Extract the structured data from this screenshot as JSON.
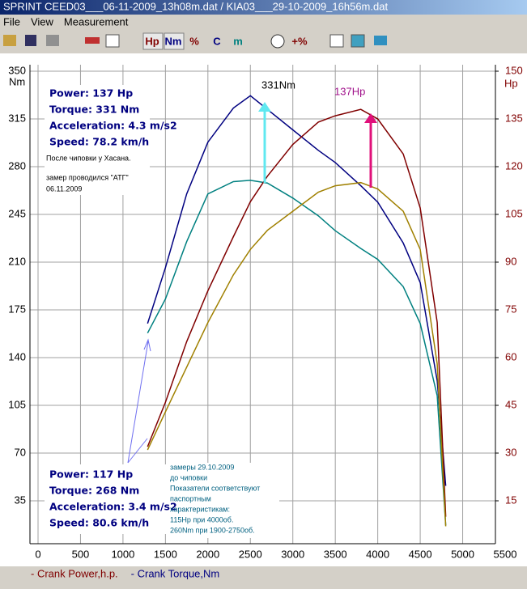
{
  "window": {
    "title": "SPRINT  CEED03___06-11-2009_13h08m.dat / KIA03___29-10-2009_16h56m.dat"
  },
  "menu": [
    "File",
    "View",
    "Measurement"
  ],
  "toolbar": [
    "Hp",
    "Nm",
    "%",
    "C",
    "m",
    "+%"
  ],
  "chart_data": {
    "type": "line",
    "y_label": "Nm",
    "y2_label": "Hp",
    "x": [
      1290,
      1500,
      1750,
      2000,
      2300,
      2500,
      2700,
      3000,
      3300,
      3500,
      3800,
      4000,
      4300,
      4500,
      4700,
      4800
    ],
    "xlim": [
      0,
      5500
    ],
    "xticks": [
      0,
      500,
      1000,
      1500,
      2000,
      2500,
      3000,
      3500,
      4000,
      4500,
      5000,
      5500
    ],
    "ylim": [
      0,
      350
    ],
    "yticks": [
      35,
      70,
      105,
      140,
      175,
      210,
      245,
      280,
      315,
      350
    ],
    "y2lim": [
      0,
      150
    ],
    "y2ticks": [
      15,
      30,
      45,
      60,
      75,
      90,
      105,
      120,
      135,
      150
    ],
    "grid": true,
    "series": [
      {
        "color": "#000080",
        "values": [
          165,
          206,
          260,
          298,
          323,
          332,
          322,
          307,
          292,
          283,
          266,
          254,
          224,
          195,
          123,
          46
        ]
      },
      {
        "color": "#008080",
        "values": [
          158,
          183,
          225,
          260,
          269,
          270,
          268,
          257,
          244,
          233,
          220,
          212,
          192,
          165,
          112,
          17
        ]
      },
      {
        "color": "#800000",
        "axis": "y2",
        "values": [
          32,
          46,
          65,
          81,
          98,
          109,
          117,
          127,
          134,
          136,
          138,
          135,
          124,
          107,
          71,
          10
        ]
      },
      {
        "color": "#a08000",
        "axis": "y2",
        "values": [
          31,
          43,
          57,
          71,
          86,
          94,
          100,
          106,
          112,
          114,
          115,
          113,
          106,
          94,
          58,
          7
        ]
      }
    ],
    "annotations": [
      "331Nm",
      "137Hp"
    ],
    "info_after": [
      "Power: 137 Hp",
      "Torque: 331 Nm",
      "Acceleration: 4.3 m/s2",
      "Speed: 78.2 km/h"
    ],
    "comment_after": [
      "После чиповки у Хасана.",
      "замер проводился \"АТГ\"",
      "06.11.2009"
    ],
    "info_before": [
      "Power: 117 Hp",
      "Torque: 268 Nm",
      "Acceleration: 3.4 m/s2",
      "Speed: 80.6 km/h"
    ],
    "note": [
      "замеры 29.10.2009",
      "до чиповки",
      "Показатели соответствуют",
      "паспортным",
      "характеристикам:",
      "115Hp при 4000об.",
      "260Nm при 1900-2750об."
    ],
    "legend": [
      {
        "label": "- Crank Power,h.p.",
        "color": "#800000"
      },
      {
        "label": "- Crank Torque,Nm",
        "color": "#000080"
      }
    ]
  }
}
